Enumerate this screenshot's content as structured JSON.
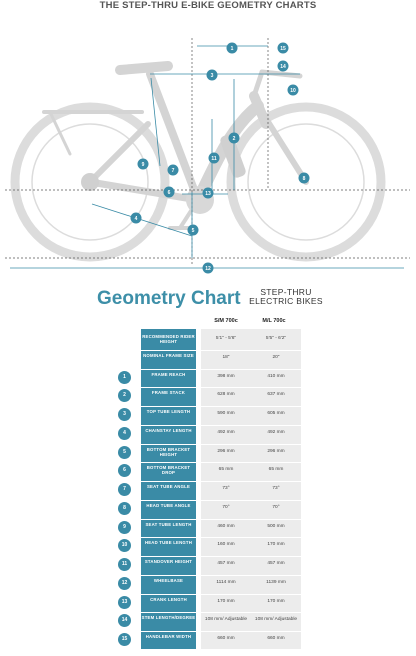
{
  "page_title": "THE STEP-THRU E-BIKE GEOMETRY CHARTS",
  "diagram": {
    "markers": [
      "1",
      "2",
      "3",
      "4",
      "5",
      "6",
      "7",
      "8",
      "9",
      "10",
      "11",
      "12",
      "13",
      "14",
      "15"
    ]
  },
  "chart_title": "Geometry Chart",
  "chart_subtitle_line1": "STEP-THRU",
  "chart_subtitle_line2": "ELECTRIC BIKES",
  "columns": [
    "S/M 700c",
    "M/L 700c"
  ],
  "rows": [
    {
      "num": "",
      "label": "RECOMMENDED RIDER HEIGHT",
      "sm": "5'1\" - 5'6\"",
      "ml": "5'5\" - 6'2\""
    },
    {
      "num": "",
      "label": "NOMINAL FRAME SIZE",
      "sm": "18\"",
      "ml": "20\""
    },
    {
      "num": "1",
      "label": "FRAME REACH",
      "sm": "398 mm",
      "ml": "410 mm"
    },
    {
      "num": "2",
      "label": "FRAME STACK",
      "sm": "628 mm",
      "ml": "637 mm"
    },
    {
      "num": "3",
      "label": "TOP TUBE LENGTH",
      "sm": "590 mm",
      "ml": "605 mm"
    },
    {
      "num": "4",
      "label": "CHAINSTAY LENGTH",
      "sm": "492 mm",
      "ml": "492 mm"
    },
    {
      "num": "5",
      "label": "BOTTOM BRACKET HEIGHT",
      "sm": "296 mm",
      "ml": "296 mm"
    },
    {
      "num": "6",
      "label": "BOTTOM BRACKET DROP",
      "sm": "65 mm",
      "ml": "65 mm"
    },
    {
      "num": "7",
      "label": "SEAT TUBE ANGLE",
      "sm": "73°",
      "ml": "73°"
    },
    {
      "num": "8",
      "label": "HEAD TUBE ANGLE",
      "sm": "70°",
      "ml": "70°"
    },
    {
      "num": "9",
      "label": "SEAT TUBE LENGTH",
      "sm": "460 mm",
      "ml": "500 mm"
    },
    {
      "num": "10",
      "label": "HEAD TUBE LENGTH",
      "sm": "160 mm",
      "ml": "170 mm"
    },
    {
      "num": "11",
      "label": "STANDOVER HEIGHT",
      "sm": "457 mm",
      "ml": "457 mm"
    },
    {
      "num": "12",
      "label": "WHEELBASE",
      "sm": "1114 mm",
      "ml": "1139 mm"
    },
    {
      "num": "13",
      "label": "CRANK LENGTH",
      "sm": "170 mm",
      "ml": "170 mm"
    },
    {
      "num": "14",
      "label": "STEM LENGTH/DEGREE",
      "sm": "108 mm/ Adjustable",
      "ml": "108 mm/ Adjustable"
    },
    {
      "num": "15",
      "label": "HANDLEBAR WIDTH",
      "sm": "660 mm",
      "ml": "660 mm"
    }
  ]
}
